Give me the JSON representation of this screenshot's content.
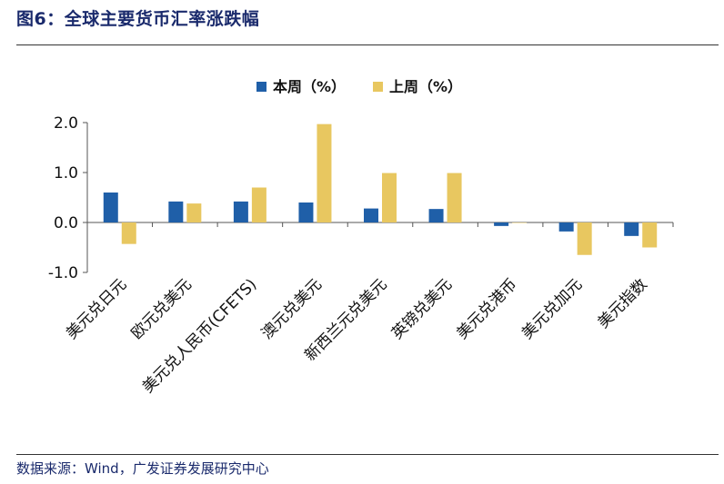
{
  "figure": {
    "title": "图6：全球主要货币汇率涨跌幅",
    "source": "数据来源：Wind，广发证券发展研究中心"
  },
  "chart_data": {
    "type": "bar",
    "categories": [
      "美元兑日元",
      "欧元兑美元",
      "美元兑人民币(CFETS)",
      "澳元兑美元",
      "新西兰元兑美元",
      "英镑兑美元",
      "美元兑港币",
      "美元兑加元",
      "美元指数"
    ],
    "series": [
      {
        "name": "本周（%）",
        "color": "#1f5fa8",
        "values": [
          0.6,
          0.42,
          0.42,
          0.4,
          0.28,
          0.27,
          -0.07,
          -0.18,
          -0.27
        ]
      },
      {
        "name": "上周（%）",
        "color": "#e8c760",
        "values": [
          -0.43,
          0.38,
          0.7,
          1.97,
          0.99,
          0.99,
          0.0,
          -0.65,
          -0.5
        ]
      }
    ],
    "yticks": [
      "2.0",
      "1.0",
      "0.0",
      "-1.0"
    ],
    "ylim": [
      -1.0,
      2.0
    ],
    "legend_position": "top-center",
    "grid": false
  }
}
